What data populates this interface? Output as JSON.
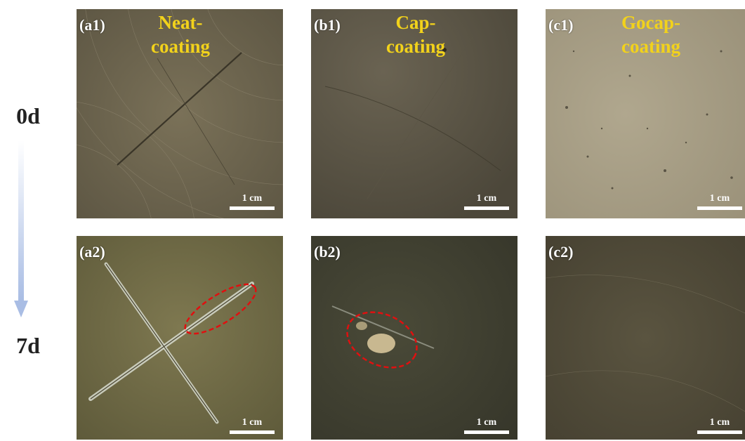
{
  "days": [
    "0d",
    "7d"
  ],
  "panels": [
    {
      "id": "(a1)",
      "title": [
        "Neat-",
        "coating"
      ],
      "scale": "1 cm"
    },
    {
      "id": "(b1)",
      "title": [
        "Cap-",
        "coating"
      ],
      "scale": "1 cm"
    },
    {
      "id": "(c1)",
      "title": [
        "Gocap-",
        "coating"
      ],
      "scale": "1 cm"
    },
    {
      "id": "(a2)",
      "scale": "1 cm"
    },
    {
      "id": "(b2)",
      "scale": "1 cm"
    },
    {
      "id": "(c2)",
      "scale": "1 cm"
    }
  ],
  "colors": {
    "title": "#f2d21b",
    "arrow": "#a9bde4",
    "highlight_ellipse": "#e01010"
  }
}
